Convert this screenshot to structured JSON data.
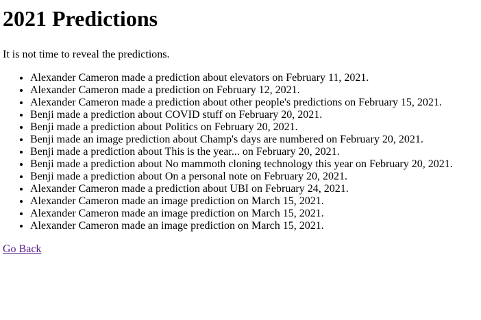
{
  "page": {
    "title": "2021 Predictions",
    "intro": "It is not time to reveal the predictions."
  },
  "predictions": [
    "Alexander Cameron made a prediction about elevators on February 11, 2021.",
    "Alexander Cameron made a prediction on February 12, 2021.",
    "Alexander Cameron made a prediction about other people's predictions on February 15, 2021.",
    "Benji made a prediction about COVID stuff on February 20, 2021.",
    "Benji made a prediction about Politics on February 20, 2021.",
    "Benji made an image prediction about Champ's days are numbered on February 20, 2021.",
    "Benji made a prediction about This is the year... on February 20, 2021.",
    "Benji made a prediction about No mammoth cloning technology this year on February 20, 2021.",
    "Benji made a prediction about On a personal note on February 20, 2021.",
    "Alexander Cameron made a prediction about UBI on February 24, 2021.",
    "Alexander Cameron made an image prediction on March 15, 2021.",
    "Alexander Cameron made an image prediction on March 15, 2021.",
    "Alexander Cameron made an image prediction on March 15, 2021."
  ],
  "nav": {
    "back_label": "Go Back"
  },
  "colors": {
    "visited_link": "#551a8b",
    "text": "#000000",
    "background": "#ffffff"
  }
}
